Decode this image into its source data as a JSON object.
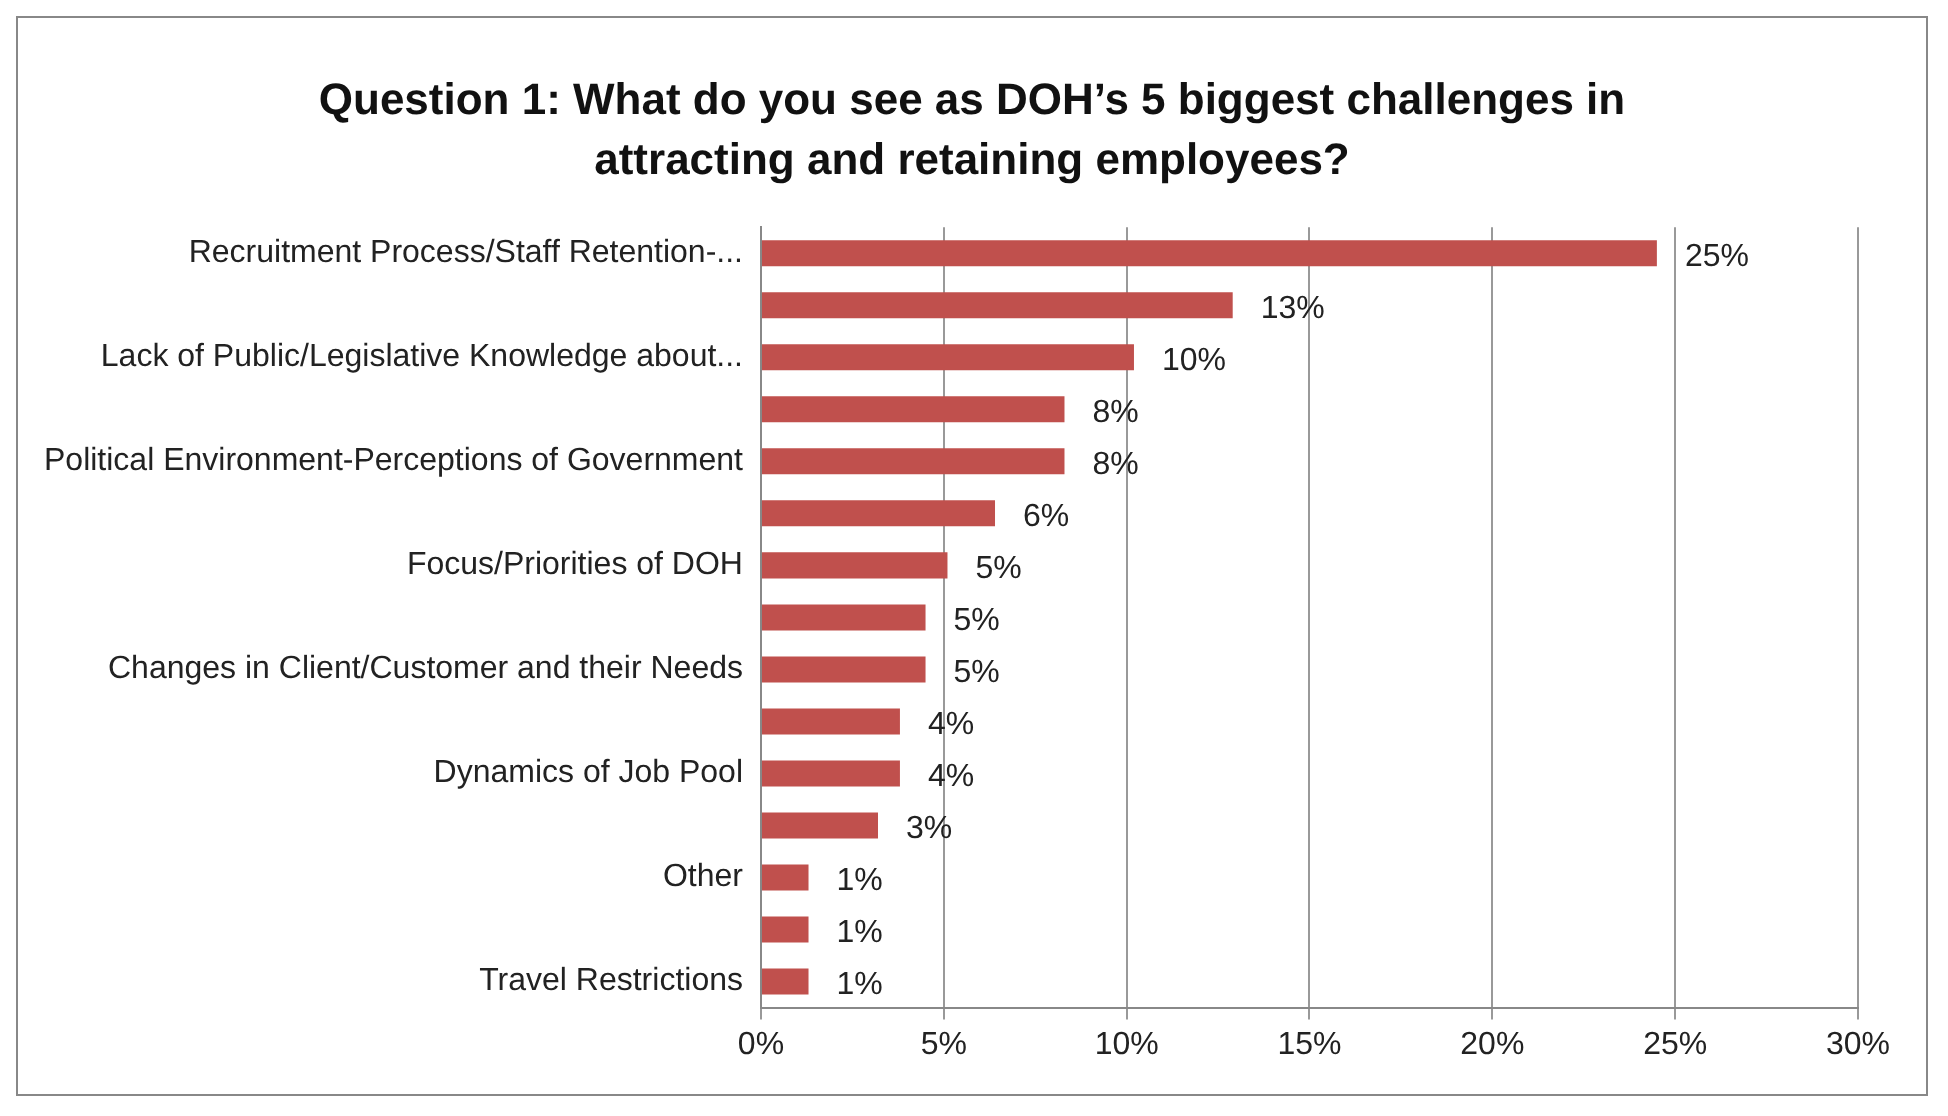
{
  "chart_data": {
    "type": "bar",
    "orientation": "horizontal",
    "title": "Question 1: What do you see as DOH’s 5 biggest challenges in attracting and retaining employees?",
    "categories": [
      "Recruitment Process/Staff Retention-...",
      null,
      "Lack of Public/Legislative Knowledge about...",
      null,
      "Political Environment-Perceptions of Government",
      null,
      "Focus/Priorities of DOH",
      null,
      "Changes in Client/Customer and their Needs",
      null,
      "Dynamics of Job Pool",
      null,
      "Other",
      null,
      "Travel Restrictions"
    ],
    "values": [
      24.5,
      12.9,
      10.2,
      8.3,
      8.3,
      6.4,
      5.1,
      4.5,
      4.5,
      3.8,
      3.8,
      3.2,
      1.3,
      1.3,
      1.3
    ],
    "value_labels": [
      "25%",
      "13%",
      "10%",
      "8%",
      "8%",
      "6%",
      "5%",
      "5%",
      "5%",
      "4%",
      "4%",
      "3%",
      "1%",
      "1%",
      "1%"
    ],
    "color": "#c0504d",
    "xlim": [
      0,
      30
    ],
    "xticks": [
      {
        "value": 0,
        "label": "0%"
      },
      {
        "value": 5,
        "label": "5%"
      },
      {
        "value": 10,
        "label": "10%"
      },
      {
        "value": 15,
        "label": "15%"
      },
      {
        "value": 20,
        "label": "20%"
      },
      {
        "value": 25,
        "label": "25%"
      },
      {
        "value": 30,
        "label": "30%"
      }
    ],
    "grid": "x",
    "legend": false
  }
}
